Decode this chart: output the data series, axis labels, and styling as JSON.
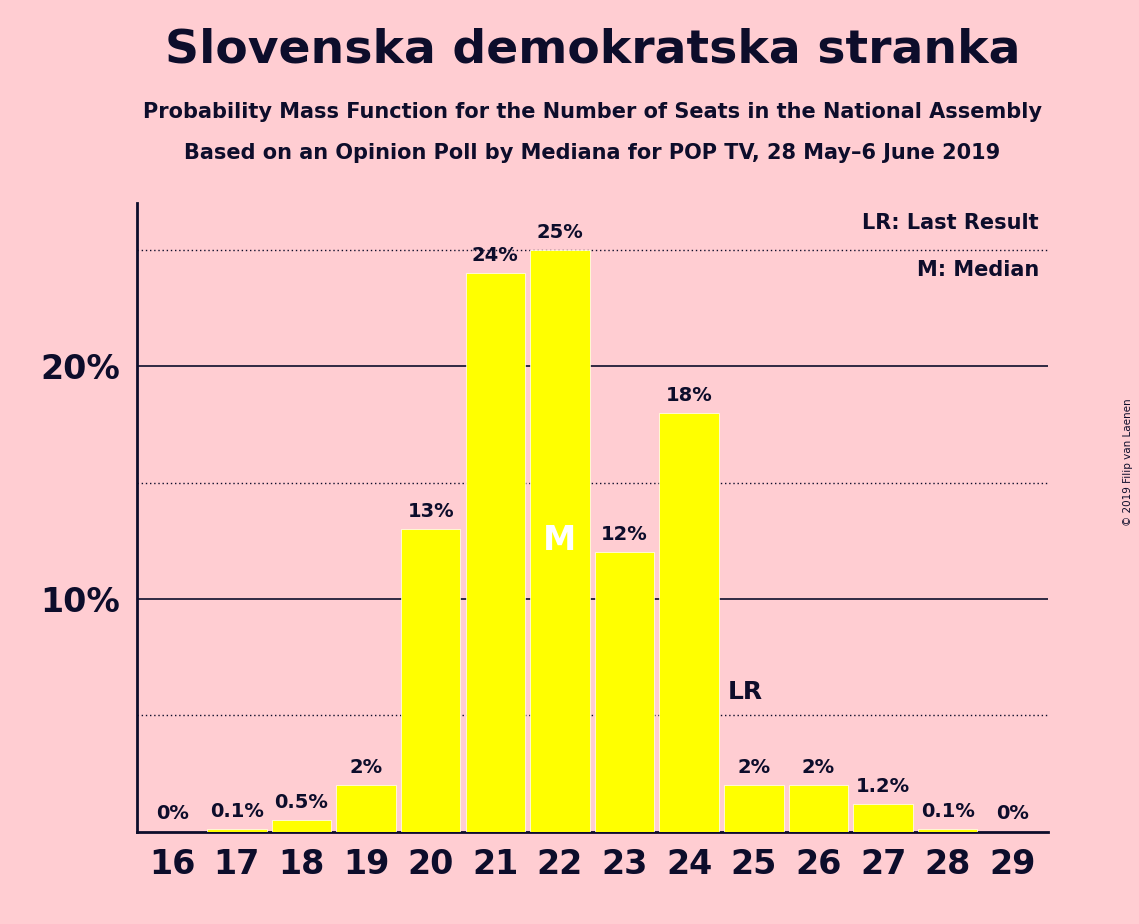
{
  "title": "Slovenska demokratska stranka",
  "subtitle1": "Probability Mass Function for the Number of Seats in the National Assembly",
  "subtitle2": "Based on an Opinion Poll by Mediana for POP TV, 28 May–6 June 2019",
  "copyright": "© 2019 Filip van Laenen",
  "seats": [
    16,
    17,
    18,
    19,
    20,
    21,
    22,
    23,
    24,
    25,
    26,
    27,
    28,
    29
  ],
  "probabilities": [
    0.0,
    0.1,
    0.5,
    2.0,
    13.0,
    24.0,
    25.0,
    12.0,
    18.0,
    2.0,
    2.0,
    1.2,
    0.1,
    0.0
  ],
  "bar_color": "#FFFF00",
  "background_color": "#FFCDD2",
  "text_color": "#0D0D2B",
  "bar_edge_color": "#FFFFFF",
  "median_seat": 22,
  "last_result_value": 5.0,
  "ylim": [
    0,
    27
  ],
  "yticks_solid": [
    10,
    20
  ],
  "yticks_dotted": [
    5,
    15,
    25
  ],
  "legend_lr": "LR: Last Result",
  "legend_m": "M: Median",
  "bar_labels": [
    "0%",
    "0.1%",
    "0.5%",
    "2%",
    "13%",
    "24%",
    "25%",
    "12%",
    "18%",
    "2%",
    "2%",
    "1.2%",
    "0.1%",
    "0%"
  ]
}
